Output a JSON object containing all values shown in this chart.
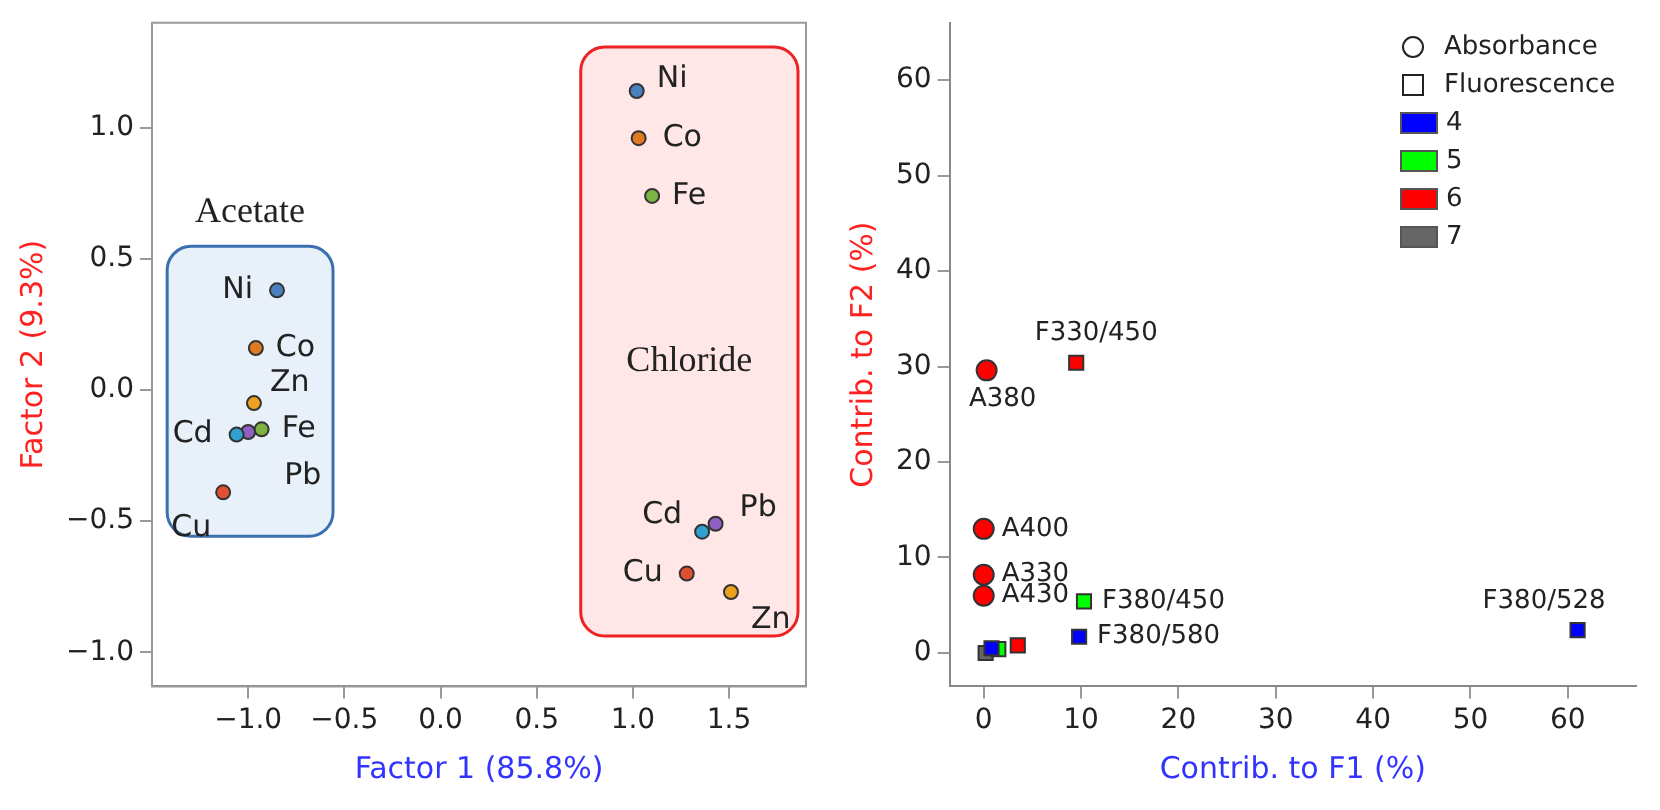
{
  "chart_data": [
    {
      "type": "scatter",
      "xlabel": "Factor 1 (85.8%)",
      "ylabel": "Factor 2 (9.3%)",
      "xlim": [
        -1.5,
        1.9
      ],
      "ylim": [
        -1.13,
        1.4
      ],
      "xticks": [
        {
          "value": -1,
          "label": "−1.0"
        },
        {
          "value": -0.5,
          "label": "−0.5"
        },
        {
          "value": 0,
          "label": "0.0"
        },
        {
          "value": 0.5,
          "label": "0.5"
        },
        {
          "value": 1,
          "label": "1.0"
        },
        {
          "value": 1.5,
          "label": "1.5"
        }
      ],
      "yticks": [
        {
          "value": -1,
          "label": "−1.0"
        },
        {
          "value": -0.5,
          "label": "−0.5"
        },
        {
          "value": 0,
          "label": "0.0"
        },
        {
          "value": 0.5,
          "label": "0.5"
        },
        {
          "value": 1,
          "label": "1.0"
        }
      ],
      "grid": false,
      "legend": false,
      "marker": "circle",
      "series": [
        {
          "name": "Ni",
          "color": "#4a7fc0",
          "x": [
            -0.85,
            1.02
          ],
          "values": [
            0.38,
            1.14
          ]
        },
        {
          "name": "Co",
          "color": "#e07a20",
          "x": [
            -0.96,
            1.03
          ],
          "values": [
            0.16,
            0.96
          ]
        },
        {
          "name": "Fe",
          "color": "#7cb342",
          "x": [
            -0.93,
            1.1
          ],
          "values": [
            -0.15,
            0.74
          ]
        },
        {
          "name": "Zn",
          "color": "#f0a020",
          "x": [
            -0.97,
            1.51
          ],
          "values": [
            -0.05,
            -0.77
          ]
        },
        {
          "name": "Cd",
          "color": "#30a0d0",
          "x": [
            -1.06,
            1.36
          ],
          "values": [
            -0.17,
            -0.54
          ]
        },
        {
          "name": "Pb",
          "color": "#9060c0",
          "x": [
            -1.0,
            1.43
          ],
          "values": [
            -0.16,
            -0.51
          ]
        },
        {
          "name": "Cu",
          "color": "#e05030",
          "x": [
            -1.13,
            1.28
          ],
          "values": [
            -0.39,
            -0.7
          ]
        }
      ],
      "annotations": [
        "Acetate",
        "Chloride"
      ]
    },
    {
      "type": "scatter",
      "xlabel": "Contrib. to F1 (%)",
      "ylabel": "Contrib. to F2 (%)",
      "xlim": [
        -3.5,
        67
      ],
      "ylim": [
        -3.5,
        66
      ],
      "xticks": [
        0,
        10,
        20,
        30,
        40,
        50,
        60
      ],
      "yticks": [
        0,
        10,
        20,
        30,
        40,
        50,
        60
      ],
      "grid": false,
      "legend": "top right",
      "annotations": [
        "Absorbance",
        "Fluorescence"
      ],
      "series": [
        {
          "color": "#ff0000",
          "marker": "circle",
          "x": [
            0.3,
            0,
            0,
            0
          ],
          "values": [
            29.6,
            13,
            8.2,
            6
          ],
          "value_labels": [
            "A380",
            "A400",
            "A330",
            "A430"
          ]
        },
        {
          "name": "4",
          "color": "#0000ff",
          "marker": "square",
          "x": [
            9.8,
            61,
            0.8
          ],
          "values": [
            1.7,
            2.4,
            0.5
          ],
          "value_labels": [
            "F380/580",
            "F380/528",
            null
          ]
        },
        {
          "name": "5",
          "color": "#00ff00",
          "marker": "square",
          "x": [
            10.3,
            1.5
          ],
          "values": [
            5.4,
            0.4
          ],
          "value_labels": [
            "F380/450",
            null
          ]
        },
        {
          "name": "6",
          "color": "#ff0000",
          "marker": "square",
          "x": [
            9.5,
            3.5
          ],
          "values": [
            30.4,
            0.8
          ],
          "value_labels": [
            "F330/450",
            null
          ]
        },
        {
          "name": "7",
          "color": "#666666",
          "marker": "square",
          "x": [
            0.2
          ],
          "values": [
            0.0
          ]
        }
      ]
    }
  ]
}
